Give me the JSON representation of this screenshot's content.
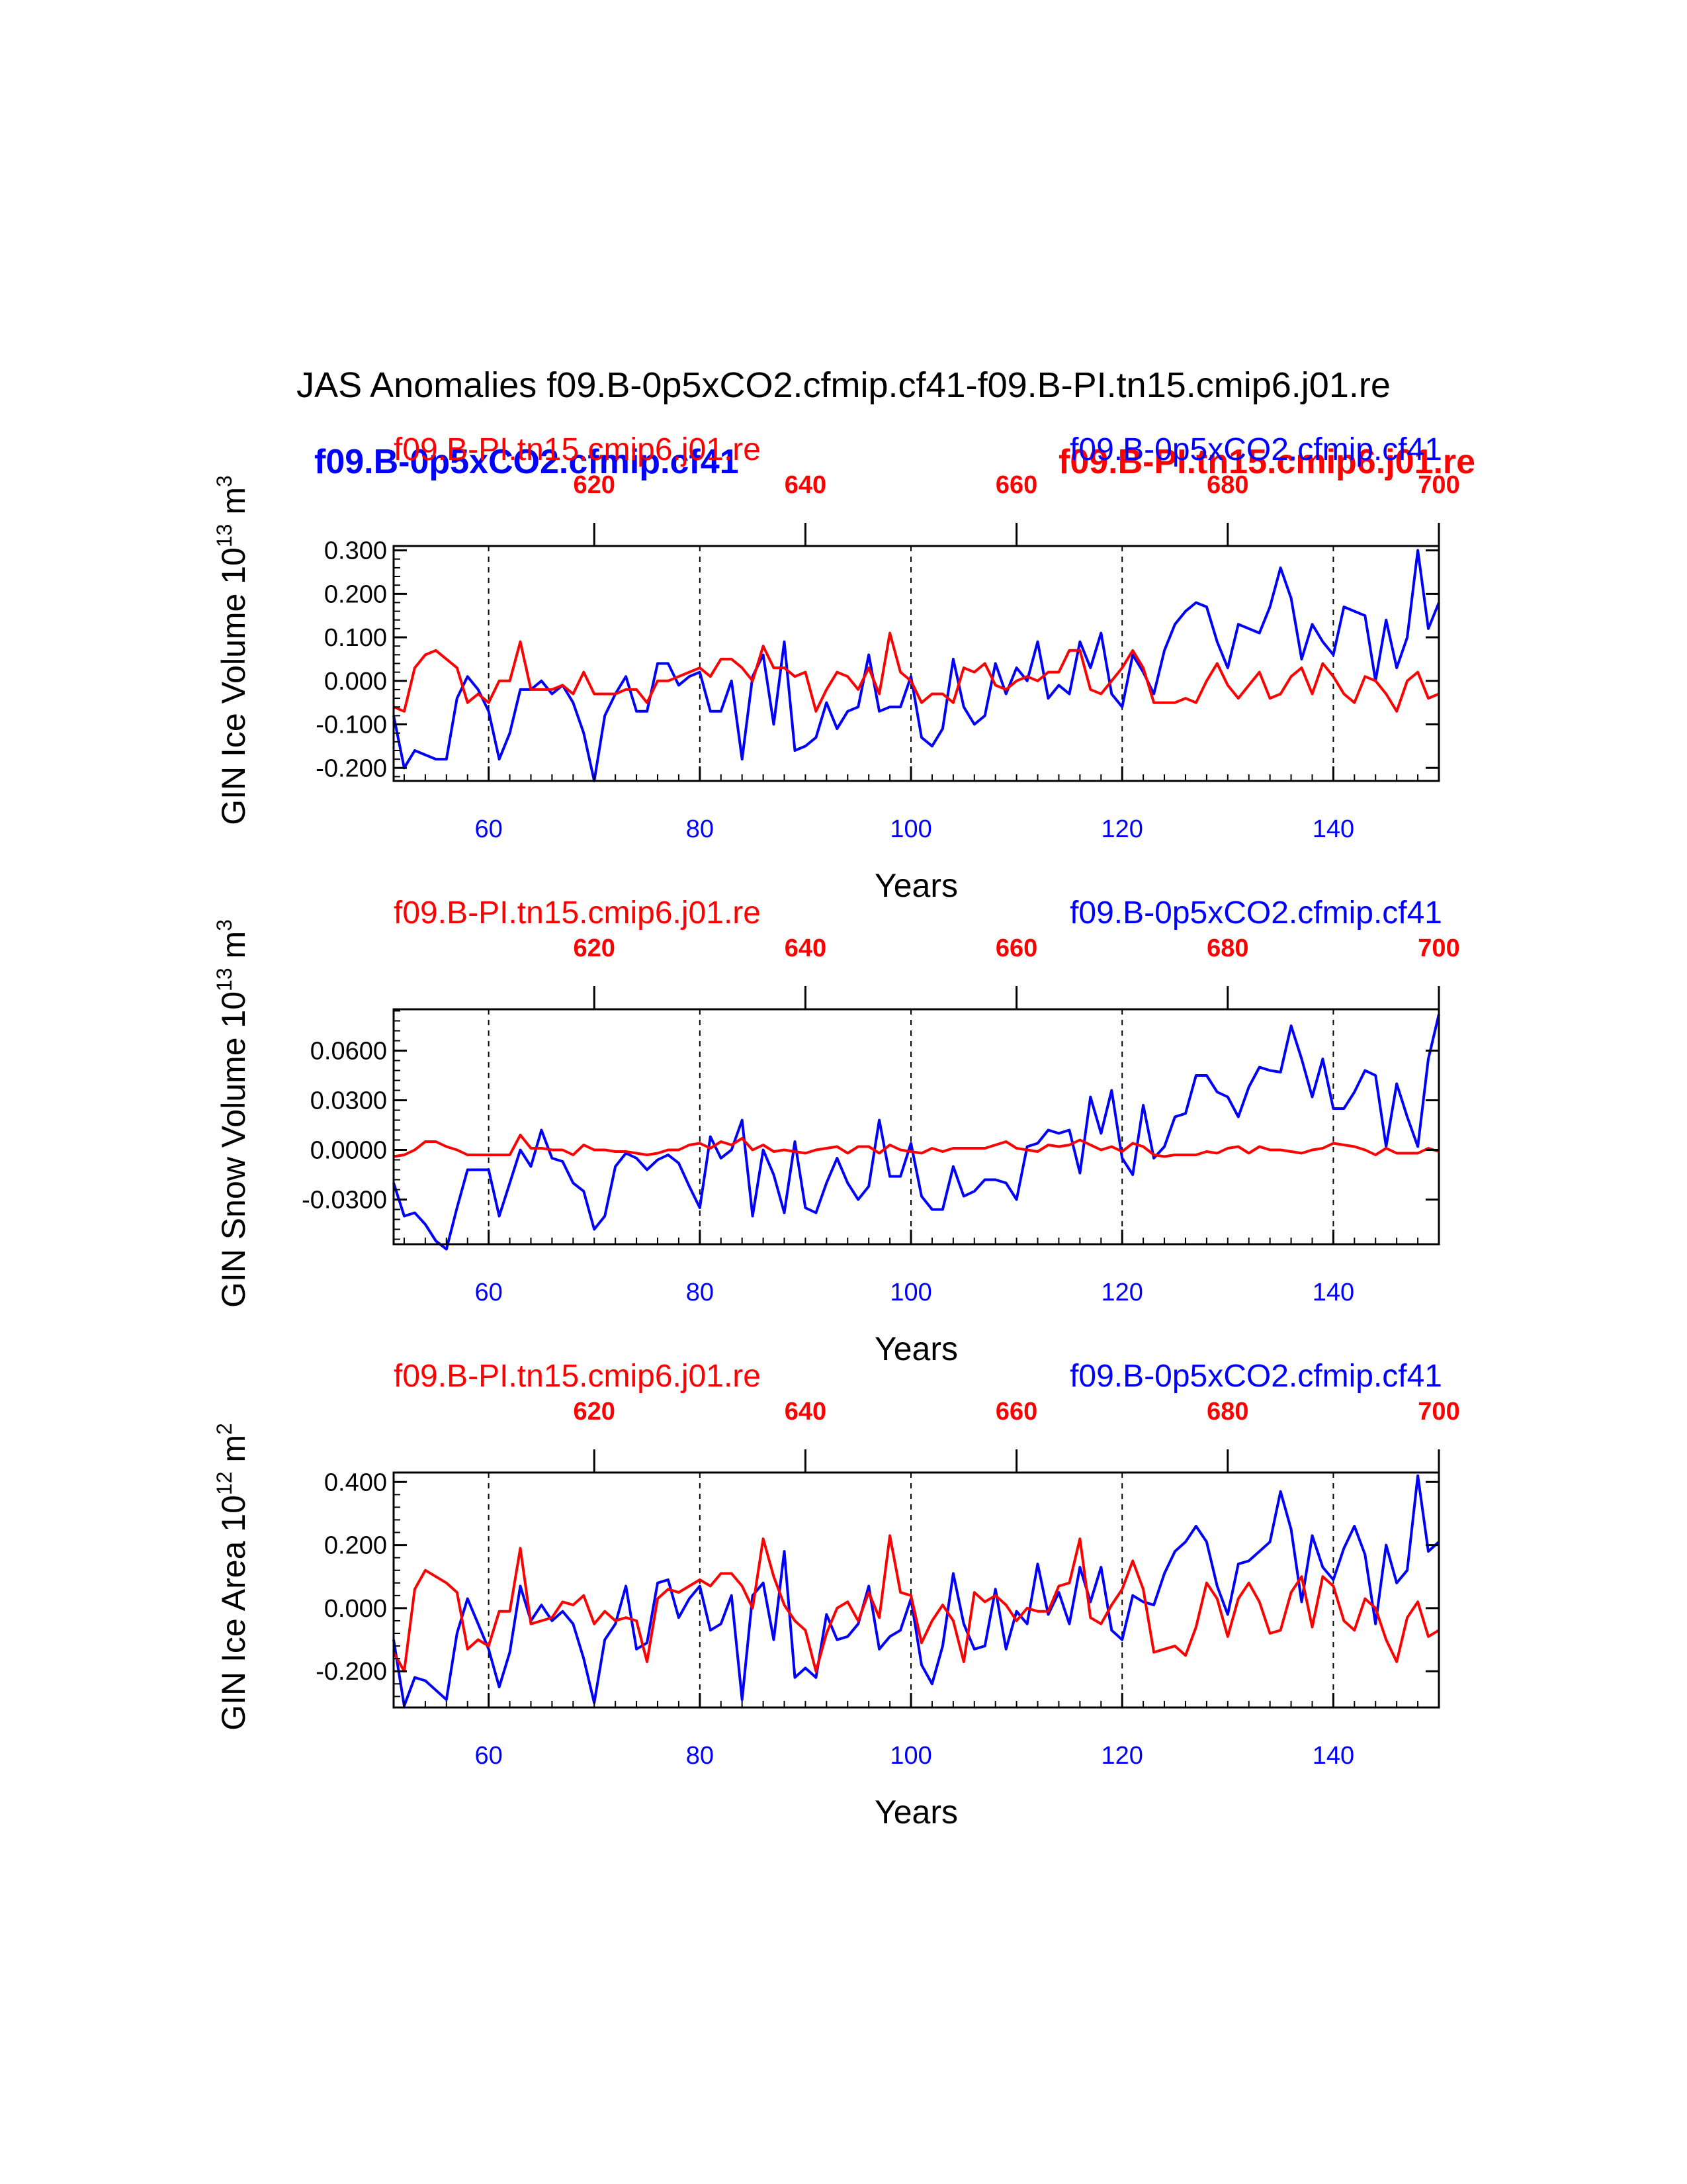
{
  "title": "JAS Anomalies f09.B-0p5xCO2.cfmip.cf41-f09.B-PI.tn15.cmip6.j01.re",
  "legend": {
    "blue_bold": "f09.B-0p5xCO2.cfmip.cf41",
    "red_bold": "f09.B-PI.tn15.cmip6.j01.re"
  },
  "colors": {
    "blue_series": "#0000ff",
    "red_series": "#ff0000",
    "axis": "#000000"
  },
  "chart_data": [
    {
      "type": "line",
      "ylabel": "GIN Ice Volume 10",
      "ylabel_exp": "13",
      "ylabel_unit": " m",
      "ylabel_unit_exp": "3",
      "xlabel": "Years",
      "top_case": "f09.B-PI.tn15.cmip6.j01.re",
      "bottom_case": "f09.B-0p5xCO2.cfmip.cf41",
      "ylim": [
        -0.23,
        0.31
      ],
      "yticks": [
        -0.2,
        -0.1,
        0.0,
        0.1,
        0.2,
        0.3
      ],
      "ytick_labels": [
        "-0.200",
        "-0.100",
        "0.000",
        "0.100",
        "0.200",
        "0.300"
      ],
      "xlim": [
        51,
        150
      ],
      "xticks": [
        60,
        80,
        100,
        120,
        140
      ],
      "xtick_labels": [
        "60",
        "80",
        "100",
        "120",
        "140"
      ],
      "top_xlim": [
        601,
        700
      ],
      "top_xticks": [
        620,
        640,
        660,
        680,
        700
      ],
      "top_xtick_labels": [
        "620",
        "640",
        "660",
        "680",
        "700"
      ],
      "vgrid": [
        60,
        80,
        100,
        120,
        140
      ],
      "x": [
        51,
        52,
        53,
        54,
        55,
        56,
        57,
        58,
        59,
        60,
        61,
        62,
        63,
        64,
        65,
        66,
        67,
        68,
        69,
        70,
        71,
        72,
        73,
        74,
        75,
        76,
        77,
        78,
        79,
        80,
        81,
        82,
        83,
        84,
        85,
        86,
        87,
        88,
        89,
        90,
        91,
        92,
        93,
        94,
        95,
        96,
        97,
        98,
        99,
        100,
        101,
        102,
        103,
        104,
        105,
        106,
        107,
        108,
        109,
        110,
        111,
        112,
        113,
        114,
        115,
        116,
        117,
        118,
        119,
        120,
        121,
        122,
        123,
        124,
        125,
        126,
        127,
        128,
        129,
        130,
        131,
        132,
        133,
        134,
        135,
        136,
        137,
        138,
        139,
        140,
        141,
        142,
        143,
        144,
        145,
        146,
        147,
        148,
        149,
        150
      ],
      "series": [
        {
          "name": "f09.B-0p5xCO2.cfmip.cf41",
          "color": "#0000ff",
          "values": [
            -0.08,
            -0.2,
            -0.16,
            -0.17,
            -0.18,
            -0.18,
            -0.04,
            0.01,
            -0.02,
            -0.07,
            -0.18,
            -0.12,
            -0.02,
            -0.02,
            0.0,
            -0.03,
            -0.01,
            -0.05,
            -0.12,
            -0.23,
            -0.08,
            -0.03,
            0.01,
            -0.07,
            -0.07,
            0.04,
            0.04,
            -0.01,
            0.01,
            0.02,
            -0.07,
            -0.07,
            0.0,
            -0.18,
            0.01,
            0.06,
            -0.1,
            0.09,
            -0.16,
            -0.15,
            -0.13,
            -0.05,
            -0.11,
            -0.07,
            -0.06,
            0.06,
            -0.07,
            -0.06,
            -0.06,
            0.01,
            -0.13,
            -0.15,
            -0.11,
            0.05,
            -0.06,
            -0.1,
            -0.08,
            0.04,
            -0.03,
            0.03,
            0.0,
            0.09,
            -0.04,
            -0.01,
            -0.03,
            0.09,
            0.03,
            0.11,
            -0.03,
            -0.06,
            0.06,
            0.02,
            -0.03,
            0.07,
            0.13,
            0.16,
            0.18,
            0.17,
            0.09,
            0.03,
            0.13,
            0.12,
            0.11,
            0.17,
            0.26,
            0.19,
            0.05,
            0.13,
            0.09,
            0.06,
            0.17,
            0.16,
            0.15,
            0.0,
            0.14,
            0.03,
            0.1,
            0.3,
            0.12,
            0.18
          ]
        },
        {
          "name": "f09.B-PI.tn15.cmip6.j01.re",
          "color": "#ff0000",
          "values": [
            -0.06,
            -0.07,
            0.03,
            0.06,
            0.07,
            0.05,
            0.03,
            -0.05,
            -0.03,
            -0.05,
            0.0,
            0.0,
            0.09,
            -0.02,
            -0.02,
            -0.02,
            -0.01,
            -0.03,
            0.02,
            -0.03,
            -0.03,
            -0.03,
            -0.02,
            -0.02,
            -0.05,
            0.0,
            0.0,
            0.01,
            0.02,
            0.03,
            0.01,
            0.05,
            0.05,
            0.03,
            0.0,
            0.08,
            0.03,
            0.03,
            0.01,
            0.02,
            -0.07,
            -0.02,
            0.02,
            0.01,
            -0.02,
            0.03,
            -0.03,
            0.11,
            0.02,
            0.0,
            -0.05,
            -0.03,
            -0.03,
            -0.05,
            0.03,
            0.02,
            0.04,
            -0.01,
            -0.02,
            0.0,
            0.01,
            0.0,
            0.02,
            0.02,
            0.07,
            0.07,
            -0.02,
            -0.03,
            0.0,
            0.03,
            0.07,
            0.03,
            -0.05,
            -0.05,
            -0.05,
            -0.04,
            -0.05,
            0.0,
            0.04,
            -0.01,
            -0.04,
            -0.01,
            0.02,
            -0.04,
            -0.03,
            0.01,
            0.03,
            -0.03,
            0.04,
            0.01,
            -0.03,
            -0.05,
            0.01,
            0.0,
            -0.03,
            -0.07,
            0.0,
            0.02,
            -0.04,
            -0.03
          ]
        }
      ]
    },
    {
      "type": "line",
      "ylabel": "GIN Snow Volume 10",
      "ylabel_exp": "13",
      "ylabel_unit": " m",
      "ylabel_unit_exp": "3",
      "xlabel": "Years",
      "top_case": "f09.B-PI.tn15.cmip6.j01.re",
      "bottom_case": "f09.B-0p5xCO2.cfmip.cf41",
      "ylim": [
        -0.057,
        0.085
      ],
      "yticks": [
        -0.03,
        0.0,
        0.03,
        0.06
      ],
      "ytick_labels": [
        "-0.0300",
        "0.0000",
        "0.0300",
        "0.0600"
      ],
      "xlim": [
        51,
        150
      ],
      "xticks": [
        60,
        80,
        100,
        120,
        140
      ],
      "xtick_labels": [
        "60",
        "80",
        "100",
        "120",
        "140"
      ],
      "top_xlim": [
        601,
        700
      ],
      "top_xticks": [
        620,
        640,
        660,
        680,
        700
      ],
      "top_xtick_labels": [
        "620",
        "640",
        "660",
        "680",
        "700"
      ],
      "vgrid": [
        60,
        80,
        100,
        120,
        140
      ],
      "x": [
        51,
        52,
        53,
        54,
        55,
        56,
        57,
        58,
        59,
        60,
        61,
        62,
        63,
        64,
        65,
        66,
        67,
        68,
        69,
        70,
        71,
        72,
        73,
        74,
        75,
        76,
        77,
        78,
        79,
        80,
        81,
        82,
        83,
        84,
        85,
        86,
        87,
        88,
        89,
        90,
        91,
        92,
        93,
        94,
        95,
        96,
        97,
        98,
        99,
        100,
        101,
        102,
        103,
        104,
        105,
        106,
        107,
        108,
        109,
        110,
        111,
        112,
        113,
        114,
        115,
        116,
        117,
        118,
        119,
        120,
        121,
        122,
        123,
        124,
        125,
        126,
        127,
        128,
        129,
        130,
        131,
        132,
        133,
        134,
        135,
        136,
        137,
        138,
        139,
        140,
        141,
        142,
        143,
        144,
        145,
        146,
        147,
        148,
        149,
        150
      ],
      "series": [
        {
          "name": "f09.B-0p5xCO2.cfmip.cf41",
          "color": "#0000ff",
          "values": [
            -0.02,
            -0.04,
            -0.038,
            -0.045,
            -0.055,
            -0.06,
            -0.035,
            -0.012,
            -0.012,
            -0.012,
            -0.04,
            -0.02,
            0.0,
            -0.01,
            0.012,
            -0.005,
            -0.007,
            -0.02,
            -0.025,
            -0.048,
            -0.04,
            -0.01,
            -0.002,
            -0.005,
            -0.012,
            -0.006,
            -0.003,
            -0.008,
            -0.022,
            -0.035,
            0.008,
            -0.005,
            0.0,
            0.018,
            -0.04,
            0.0,
            -0.015,
            -0.038,
            0.005,
            -0.035,
            -0.038,
            -0.02,
            -0.005,
            -0.02,
            -0.03,
            -0.022,
            0.018,
            -0.016,
            -0.016,
            0.004,
            -0.028,
            -0.036,
            -0.036,
            -0.01,
            -0.028,
            -0.025,
            -0.018,
            -0.018,
            -0.02,
            -0.03,
            0.002,
            0.004,
            0.012,
            0.01,
            0.012,
            -0.014,
            0.032,
            0.01,
            0.036,
            -0.005,
            -0.015,
            0.027,
            -0.005,
            0.002,
            0.02,
            0.022,
            0.045,
            0.045,
            0.035,
            0.032,
            0.02,
            0.038,
            0.05,
            0.048,
            0.047,
            0.075,
            0.055,
            0.032,
            0.055,
            0.025,
            0.025,
            0.035,
            0.048,
            0.045,
            0.002,
            0.04,
            0.02,
            0.002,
            0.055,
            0.082
          ]
        },
        {
          "name": "f09.B-PI.tn15.cmip6.j01.re",
          "color": "#ff0000",
          "values": [
            -0.004,
            -0.003,
            0.0,
            0.005,
            0.005,
            0.002,
            0.0,
            -0.003,
            -0.003,
            -0.003,
            -0.003,
            -0.003,
            0.009,
            0.001,
            0.001,
            0.0,
            0.0,
            -0.003,
            0.003,
            0.0,
            0.0,
            -0.001,
            -0.001,
            -0.002,
            -0.003,
            -0.002,
            0.0,
            0.0,
            0.003,
            0.004,
            0.001,
            0.005,
            0.003,
            0.007,
            0.0,
            0.003,
            -0.001,
            0.0,
            -0.001,
            -0.002,
            0.0,
            0.001,
            0.002,
            -0.002,
            0.002,
            0.002,
            -0.002,
            0.003,
            0.0,
            -0.001,
            -0.002,
            0.001,
            -0.001,
            0.001,
            0.001,
            0.001,
            0.001,
            0.003,
            0.005,
            0.001,
            0.0,
            -0.001,
            0.003,
            0.002,
            0.003,
            0.006,
            0.003,
            0.0,
            0.002,
            -0.001,
            0.004,
            0.002,
            -0.003,
            -0.004,
            -0.003,
            -0.003,
            -0.003,
            -0.001,
            -0.002,
            0.001,
            0.002,
            -0.002,
            0.002,
            0.0,
            0.0,
            -0.001,
            -0.002,
            0.0,
            0.001,
            0.004,
            0.003,
            0.002,
            0.0,
            -0.003,
            0.001,
            -0.002,
            -0.002,
            -0.002,
            0.001,
            -0.001
          ]
        }
      ]
    },
    {
      "type": "line",
      "ylabel": "GIN Ice Area 10",
      "ylabel_exp": "12",
      "ylabel_unit": " m",
      "ylabel_unit_exp": "2",
      "xlabel": "Years",
      "top_case": "f09.B-PI.tn15.cmip6.j01.re",
      "bottom_case": "f09.B-0p5xCO2.cfmip.cf41",
      "ylim": [
        -0.315,
        0.43
      ],
      "yticks": [
        -0.2,
        0.0,
        0.2,
        0.4
      ],
      "ytick_labels": [
        "-0.200",
        "0.000",
        "0.200",
        "0.400"
      ],
      "xlim": [
        51,
        150
      ],
      "xticks": [
        60,
        80,
        100,
        120,
        140
      ],
      "xtick_labels": [
        "60",
        "80",
        "100",
        "120",
        "140"
      ],
      "top_xlim": [
        601,
        700
      ],
      "top_xticks": [
        620,
        640,
        660,
        680,
        700
      ],
      "top_xtick_labels": [
        "620",
        "640",
        "660",
        "680",
        "700"
      ],
      "vgrid": [
        60,
        80,
        100,
        120,
        140
      ],
      "x": [
        51,
        52,
        53,
        54,
        55,
        56,
        57,
        58,
        59,
        60,
        61,
        62,
        63,
        64,
        65,
        66,
        67,
        68,
        69,
        70,
        71,
        72,
        73,
        74,
        75,
        76,
        77,
        78,
        79,
        80,
        81,
        82,
        83,
        84,
        85,
        86,
        87,
        88,
        89,
        90,
        91,
        92,
        93,
        94,
        95,
        96,
        97,
        98,
        99,
        100,
        101,
        102,
        103,
        104,
        105,
        106,
        107,
        108,
        109,
        110,
        111,
        112,
        113,
        114,
        115,
        116,
        117,
        118,
        119,
        120,
        121,
        122,
        123,
        124,
        125,
        126,
        127,
        128,
        129,
        130,
        131,
        132,
        133,
        134,
        135,
        136,
        137,
        138,
        139,
        140,
        141,
        142,
        143,
        144,
        145,
        146,
        147,
        148,
        149,
        150
      ],
      "series": [
        {
          "name": "f09.B-0p5xCO2.cfmip.cf41",
          "color": "#0000ff",
          "values": [
            -0.1,
            -0.31,
            -0.22,
            -0.23,
            -0.26,
            -0.29,
            -0.08,
            0.03,
            -0.05,
            -0.13,
            -0.25,
            -0.14,
            0.07,
            -0.04,
            0.01,
            -0.04,
            -0.01,
            -0.05,
            -0.16,
            -0.3,
            -0.1,
            -0.05,
            0.07,
            -0.13,
            -0.11,
            0.08,
            0.09,
            -0.03,
            0.03,
            0.07,
            -0.07,
            -0.05,
            0.04,
            -0.29,
            0.04,
            0.08,
            -0.1,
            0.18,
            -0.22,
            -0.19,
            -0.22,
            -0.02,
            -0.1,
            -0.09,
            -0.05,
            0.07,
            -0.13,
            -0.09,
            -0.07,
            0.03,
            -0.18,
            -0.24,
            -0.12,
            0.11,
            -0.05,
            -0.13,
            -0.12,
            0.06,
            -0.13,
            -0.01,
            -0.05,
            0.14,
            -0.02,
            0.05,
            -0.05,
            0.13,
            0.02,
            0.13,
            -0.07,
            -0.1,
            0.04,
            0.02,
            0.01,
            0.11,
            0.18,
            0.21,
            0.26,
            0.21,
            0.07,
            -0.02,
            0.14,
            0.15,
            0.18,
            0.21,
            0.37,
            0.25,
            0.02,
            0.23,
            0.13,
            0.09,
            0.19,
            0.26,
            0.17,
            -0.05,
            0.2,
            0.08,
            0.12,
            0.42,
            0.18,
            0.21
          ]
        },
        {
          "name": "f09.B-PI.tn15.cmip6.j01.re",
          "color": "#ff0000",
          "values": [
            -0.14,
            -0.2,
            0.06,
            0.12,
            0.1,
            0.08,
            0.05,
            -0.13,
            -0.1,
            -0.12,
            -0.01,
            -0.01,
            0.19,
            -0.05,
            -0.04,
            -0.03,
            0.02,
            0.01,
            0.04,
            -0.05,
            -0.01,
            -0.04,
            -0.03,
            -0.04,
            -0.17,
            0.03,
            0.06,
            0.05,
            0.07,
            0.09,
            0.07,
            0.11,
            0.11,
            0.07,
            0.0,
            0.22,
            0.1,
            0.01,
            -0.04,
            -0.07,
            -0.2,
            -0.08,
            0.0,
            0.02,
            -0.04,
            0.05,
            -0.03,
            0.23,
            0.05,
            0.04,
            -0.11,
            -0.04,
            0.01,
            -0.04,
            -0.17,
            0.05,
            0.02,
            0.04,
            0.01,
            -0.04,
            0.0,
            -0.01,
            -0.01,
            0.07,
            0.08,
            0.22,
            -0.03,
            -0.05,
            0.01,
            0.06,
            0.15,
            0.06,
            -0.14,
            -0.13,
            -0.12,
            -0.15,
            -0.06,
            0.08,
            0.03,
            -0.09,
            0.03,
            0.08,
            0.02,
            -0.08,
            -0.07,
            0.05,
            0.1,
            -0.06,
            0.1,
            0.07,
            -0.04,
            -0.07,
            0.03,
            0.0,
            -0.1,
            -0.17,
            -0.03,
            0.02,
            -0.09,
            -0.07
          ]
        }
      ]
    }
  ]
}
